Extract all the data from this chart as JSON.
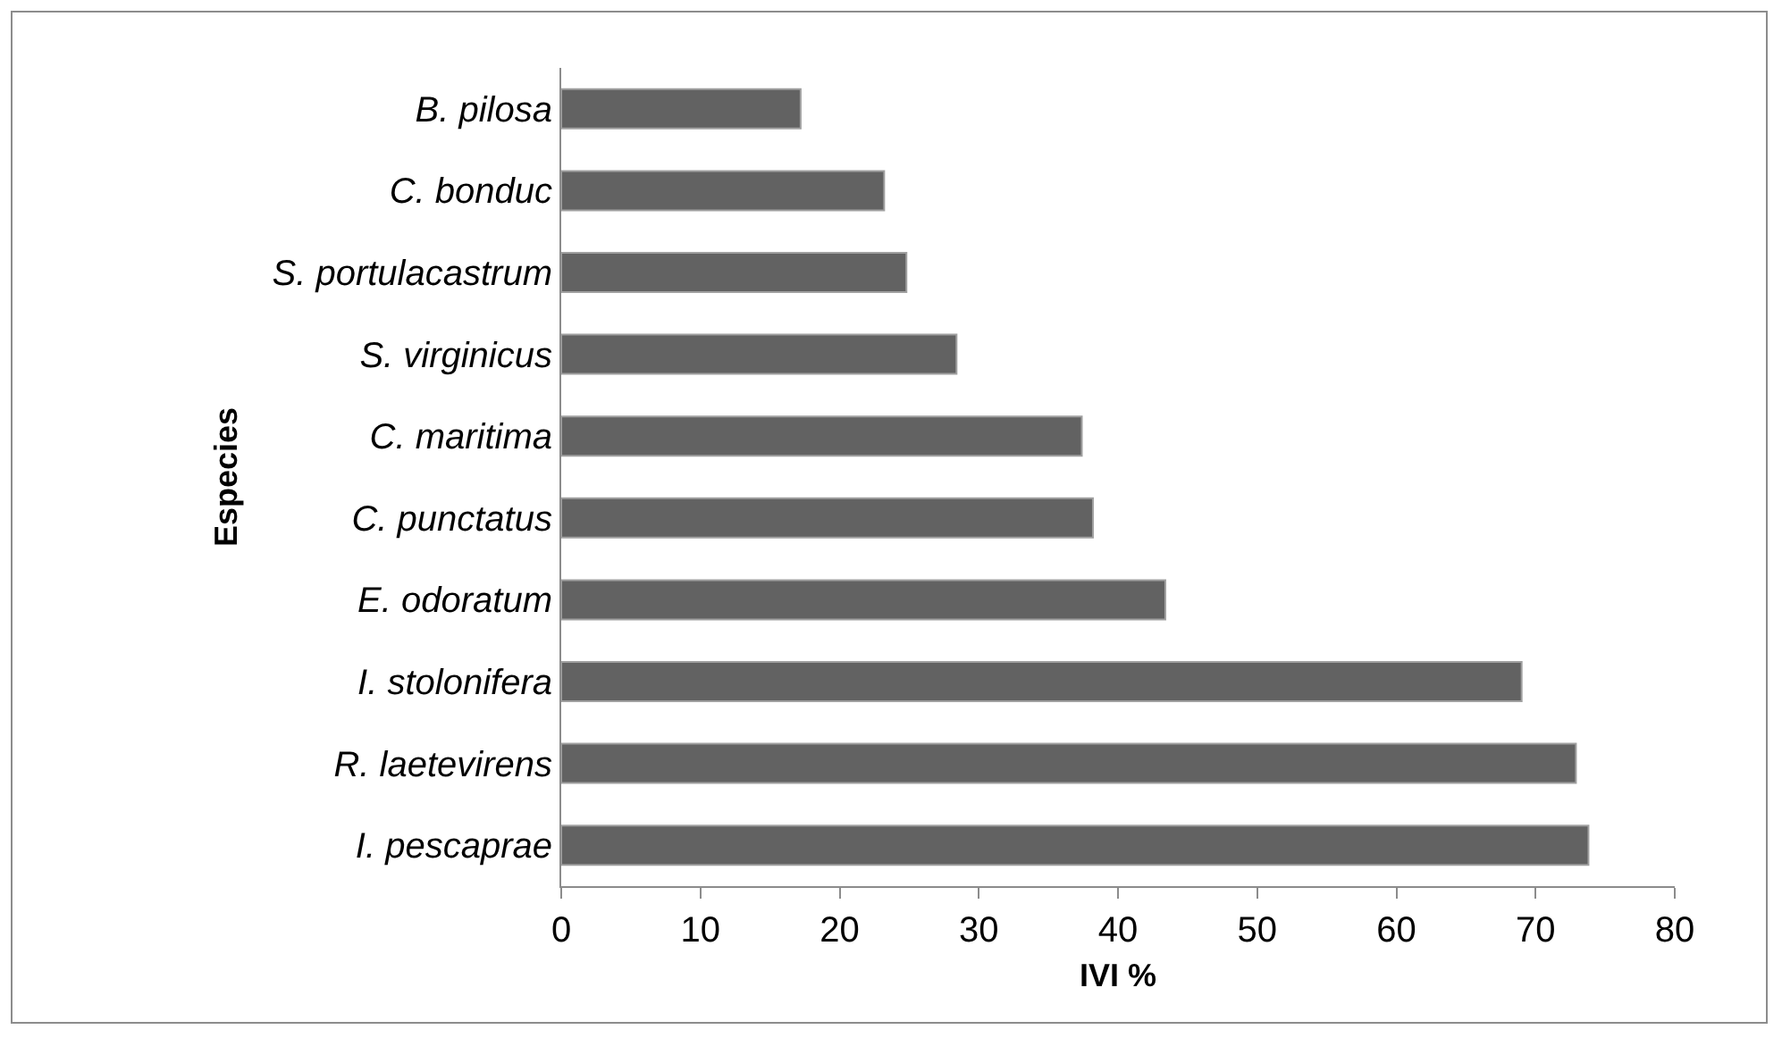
{
  "chart_data": {
    "type": "bar",
    "orientation": "horizontal",
    "xlabel": "IVI %",
    "ylabel": "Especies",
    "categories": [
      "B. pilosa",
      "C. bonduc",
      "S. portulacastrum",
      "S. virginicus",
      "C. maritima",
      "C. punctatus",
      "E. odoratum",
      "I. stolonifera",
      "R. laetevirens",
      "I. pescaprae"
    ],
    "values": [
      17.2,
      23.2,
      24.8,
      28.4,
      37.4,
      38.2,
      43.4,
      69.0,
      72.9,
      73.8
    ],
    "color": "#626262",
    "xlim": [
      0,
      80
    ],
    "xticks": [
      0,
      10,
      20,
      30,
      40,
      50,
      60,
      70,
      80
    ],
    "grid": false
  }
}
